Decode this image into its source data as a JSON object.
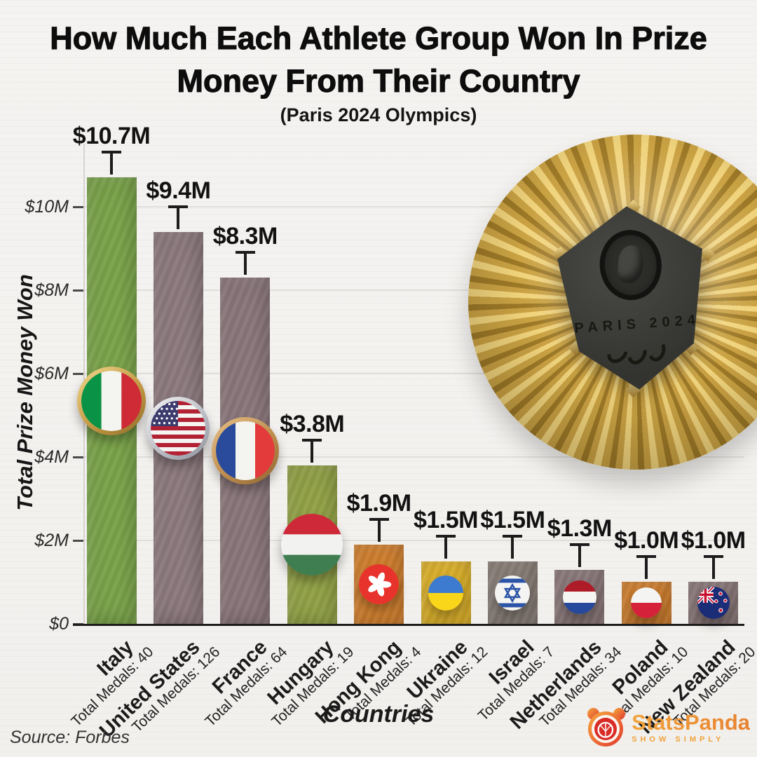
{
  "header": {
    "title_lines": [
      "How Much Each Athlete Group Won In Prize",
      "Money From Their Country"
    ],
    "subtitle": "(Paris 2024 Olympics)"
  },
  "footer": {
    "source": "Source: Forbes"
  },
  "branding": {
    "name": "StatsPanda",
    "tagline": "SHOW SIMPLY",
    "accent": "#F2A03D",
    "accent2": "#E23A2E"
  },
  "medal": {
    "engraving": "PARIS 2024"
  },
  "chart_data": {
    "type": "bar",
    "title": "How Much Each Athlete Group Won In Prize Money From Their Country",
    "subtitle": "(Paris 2024 Olympics)",
    "xlabel": "Countries",
    "ylabel": "Total Prize Money Won",
    "ylim": [
      0,
      11.6
    ],
    "grid": true,
    "legend": false,
    "yticks": [
      {
        "value": 0,
        "label": "$0"
      },
      {
        "value": 2,
        "label": "$2M"
      },
      {
        "value": 4,
        "label": "$4M"
      },
      {
        "value": 6,
        "label": "$6M"
      },
      {
        "value": 8,
        "label": "$8M"
      },
      {
        "value": 10,
        "label": "$10M"
      }
    ],
    "categories": [
      "Italy",
      "United States",
      "France",
      "Hungary",
      "Hong Kong",
      "Ukraine",
      "Israel",
      "Netherlands",
      "Poland",
      "New Zealand"
    ],
    "values": [
      10.7,
      9.4,
      8.3,
      3.8,
      1.9,
      1.5,
      1.5,
      1.3,
      1.0,
      1.0
    ],
    "value_labels": [
      "$10.7M",
      "$9.4M",
      "$8.3M",
      "$3.8M",
      "$1.9M",
      "$1.5M",
      "$1.5M",
      "$1.3M",
      "$1.0M",
      "$1.0M"
    ],
    "total_medals": [
      40,
      126,
      64,
      19,
      4,
      12,
      7,
      34,
      10,
      20
    ],
    "medals_label_prefix": "Total Medals: ",
    "bar_colors": [
      "#7AA44A",
      "#8D7A7E",
      "#8B777C",
      "#93A347",
      "#D3812F",
      "#DFB32A",
      "#8A7F78",
      "#8D7A7C",
      "#D3812F",
      "#8D7A7C"
    ],
    "flags": [
      "it",
      "us",
      "fr",
      "hu",
      "hk",
      "ua",
      "il",
      "nl",
      "pl",
      "nz"
    ],
    "ring_styles": [
      "gold",
      "silver",
      "bronze",
      null,
      null,
      null,
      null,
      null,
      null,
      null
    ]
  }
}
